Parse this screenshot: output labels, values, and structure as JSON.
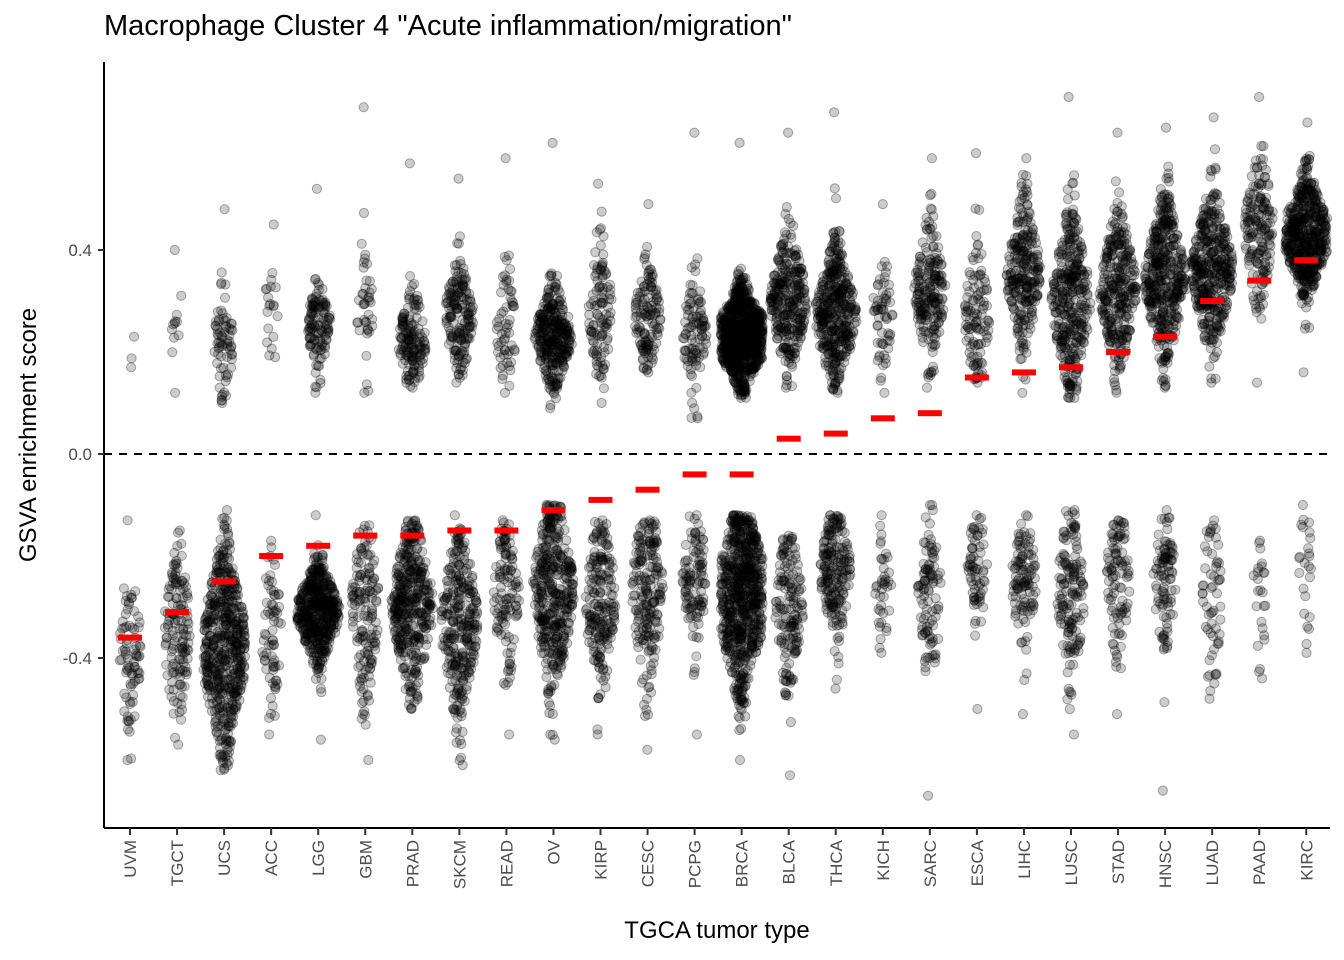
{
  "chart_data": {
    "type": "scatter",
    "subtype": "beeswarm",
    "title": "Macrophage Cluster 4 \"Acute inflammation/migration\"",
    "xlabel": "TGCA tumor type",
    "ylabel": "GSVA enrichment score",
    "ylim": [
      -0.73,
      0.77
    ],
    "yticks": [
      0.4,
      0.0,
      -0.4
    ],
    "ytick_labels": [
      "0.4",
      "0.0",
      "-0.4"
    ],
    "reference_line": {
      "y": 0.0,
      "style": "dashed",
      "color": "#000000"
    },
    "point_color": "#000000",
    "point_alpha": 0.2,
    "median_marker_color": "#ff0000",
    "grid": false,
    "legend": "none",
    "categories": [
      "UVM",
      "TGCT",
      "UCS",
      "ACC",
      "LGG",
      "GBM",
      "PRAD",
      "SKCM",
      "READ",
      "OV",
      "KIRP",
      "CESC",
      "PCPG",
      "BRCA",
      "BLCA",
      "THCA",
      "KICH",
      "SARC",
      "ESCA",
      "LIHC",
      "LUSC",
      "STAD",
      "HNSC",
      "LUAD",
      "PAAD",
      "KIRC"
    ],
    "series": [
      {
        "group": "UVM",
        "mean": -0.36,
        "n_pos": 3,
        "pos_center": 0.2,
        "pos_sd": 0.04,
        "pos_min": 0.17,
        "pos_max": 0.23,
        "n_neg": 80,
        "neg_center": -0.38,
        "neg_sd": 0.09,
        "neg_min": -0.6,
        "neg_max": -0.13
      },
      {
        "group": "TGCT",
        "mean": -0.31,
        "n_pos": 12,
        "pos_center": 0.25,
        "pos_sd": 0.07,
        "pos_min": 0.12,
        "pos_max": 0.4,
        "n_neg": 140,
        "neg_center": -0.35,
        "neg_sd": 0.09,
        "neg_min": -0.57,
        "neg_max": -0.15
      },
      {
        "group": "UCS",
        "mean": -0.25,
        "n_pos": 70,
        "pos_center": 0.22,
        "pos_sd": 0.05,
        "pos_min": 0.1,
        "pos_max": 0.48,
        "n_neg": 550,
        "neg_center": -0.38,
        "neg_sd": 0.1,
        "neg_min": -0.62,
        "neg_max": -0.11
      },
      {
        "group": "ACC",
        "mean": -0.2,
        "n_pos": 20,
        "pos_center": 0.28,
        "pos_sd": 0.06,
        "pos_min": 0.19,
        "pos_max": 0.45,
        "n_neg": 70,
        "neg_center": -0.35,
        "neg_sd": 0.08,
        "neg_min": -0.55,
        "neg_max": -0.17
      },
      {
        "group": "LGG",
        "mean": -0.18,
        "n_pos": 120,
        "pos_center": 0.25,
        "pos_sd": 0.04,
        "pos_min": 0.12,
        "pos_max": 0.52,
        "n_neg": 480,
        "neg_center": -0.31,
        "neg_sd": 0.05,
        "neg_min": -0.56,
        "neg_max": -0.12
      },
      {
        "group": "GBM",
        "mean": -0.16,
        "n_pos": 40,
        "pos_center": 0.28,
        "pos_sd": 0.07,
        "pos_min": 0.12,
        "pos_max": 0.68,
        "n_neg": 150,
        "neg_center": -0.3,
        "neg_sd": 0.09,
        "neg_min": -0.6,
        "neg_max": -0.14
      },
      {
        "group": "PRAD",
        "mean": -0.16,
        "n_pos": 150,
        "pos_center": 0.22,
        "pos_sd": 0.05,
        "pos_min": 0.13,
        "pos_max": 0.57,
        "n_neg": 400,
        "neg_center": -0.3,
        "neg_sd": 0.09,
        "neg_min": -0.5,
        "neg_max": -0.13
      },
      {
        "group": "SKCM",
        "mean": -0.15,
        "n_pos": 170,
        "pos_center": 0.27,
        "pos_sd": 0.06,
        "pos_min": 0.14,
        "pos_max": 0.54,
        "n_neg": 300,
        "neg_center": -0.33,
        "neg_sd": 0.1,
        "neg_min": -0.61,
        "neg_max": -0.12
      },
      {
        "group": "READ",
        "mean": -0.15,
        "n_pos": 60,
        "pos_center": 0.24,
        "pos_sd": 0.06,
        "pos_min": 0.12,
        "pos_max": 0.58,
        "n_neg": 120,
        "neg_center": -0.28,
        "neg_sd": 0.08,
        "neg_min": -0.55,
        "neg_max": -0.13
      },
      {
        "group": "OV",
        "mean": -0.11,
        "n_pos": 320,
        "pos_center": 0.23,
        "pos_sd": 0.05,
        "pos_min": 0.09,
        "pos_max": 0.61,
        "n_neg": 400,
        "neg_center": -0.27,
        "neg_sd": 0.1,
        "neg_min": -0.56,
        "neg_max": -0.1
      },
      {
        "group": "KIRP",
        "mean": -0.09,
        "n_pos": 110,
        "pos_center": 0.28,
        "pos_sd": 0.07,
        "pos_min": 0.1,
        "pos_max": 0.53,
        "n_neg": 200,
        "neg_center": -0.29,
        "neg_sd": 0.09,
        "neg_min": -0.55,
        "neg_max": -0.13
      },
      {
        "group": "CESC",
        "mean": -0.07,
        "n_pos": 130,
        "pos_center": 0.27,
        "pos_sd": 0.05,
        "pos_min": 0.16,
        "pos_max": 0.49,
        "n_neg": 200,
        "neg_center": -0.27,
        "neg_sd": 0.1,
        "neg_min": -0.58,
        "neg_max": -0.13
      },
      {
        "group": "PCPG",
        "mean": -0.04,
        "n_pos": 100,
        "pos_center": 0.23,
        "pos_sd": 0.06,
        "pos_min": 0.07,
        "pos_max": 0.63,
        "n_neg": 110,
        "neg_center": -0.24,
        "neg_sd": 0.07,
        "neg_min": -0.55,
        "neg_max": -0.12
      },
      {
        "group": "BRCA",
        "mean": -0.04,
        "n_pos": 800,
        "pos_center": 0.23,
        "pos_sd": 0.05,
        "pos_min": 0.11,
        "pos_max": 0.61,
        "n_neg": 700,
        "neg_center": -0.28,
        "neg_sd": 0.1,
        "neg_min": -0.6,
        "neg_max": -0.12
      },
      {
        "group": "BLCA",
        "mean": 0.03,
        "n_pos": 300,
        "pos_center": 0.3,
        "pos_sd": 0.07,
        "pos_min": 0.13,
        "pos_max": 0.63,
        "n_neg": 160,
        "neg_center": -0.3,
        "neg_sd": 0.08,
        "neg_min": -0.63,
        "neg_max": -0.16
      },
      {
        "group": "THCA",
        "mean": 0.04,
        "n_pos": 400,
        "pos_center": 0.27,
        "pos_sd": 0.07,
        "pos_min": 0.12,
        "pos_max": 0.67,
        "n_neg": 200,
        "neg_center": -0.23,
        "neg_sd": 0.07,
        "neg_min": -0.46,
        "neg_max": -0.12
      },
      {
        "group": "KICH",
        "mean": 0.07,
        "n_pos": 60,
        "pos_center": 0.28,
        "pos_sd": 0.06,
        "pos_min": 0.12,
        "pos_max": 0.49,
        "n_neg": 40,
        "neg_center": -0.27,
        "neg_sd": 0.06,
        "neg_min": -0.39,
        "neg_max": -0.12
      },
      {
        "group": "SARC",
        "mean": 0.08,
        "n_pos": 200,
        "pos_center": 0.32,
        "pos_sd": 0.07,
        "pos_min": 0.13,
        "pos_max": 0.58,
        "n_neg": 100,
        "neg_center": -0.28,
        "neg_sd": 0.08,
        "neg_min": -0.67,
        "neg_max": -0.1
      },
      {
        "group": "ESCA",
        "mean": 0.15,
        "n_pos": 110,
        "pos_center": 0.27,
        "pos_sd": 0.07,
        "pos_min": 0.14,
        "pos_max": 0.59,
        "n_neg": 70,
        "neg_center": -0.23,
        "neg_sd": 0.06,
        "neg_min": -0.5,
        "neg_max": -0.12
      },
      {
        "group": "LIHC",
        "mean": 0.16,
        "n_pos": 260,
        "pos_center": 0.35,
        "pos_sd": 0.07,
        "pos_min": 0.12,
        "pos_max": 0.58,
        "n_neg": 110,
        "neg_center": -0.25,
        "neg_sd": 0.07,
        "neg_min": -0.51,
        "neg_max": -0.12
      },
      {
        "group": "LUSC",
        "mean": 0.17,
        "n_pos": 350,
        "pos_center": 0.3,
        "pos_sd": 0.09,
        "pos_min": 0.11,
        "pos_max": 0.7,
        "n_neg": 150,
        "neg_center": -0.27,
        "neg_sd": 0.09,
        "neg_min": -0.55,
        "neg_max": -0.11
      },
      {
        "group": "STAD",
        "mean": 0.2,
        "n_pos": 300,
        "pos_center": 0.32,
        "pos_sd": 0.08,
        "pos_min": 0.12,
        "pos_max": 0.63,
        "n_neg": 100,
        "neg_center": -0.25,
        "neg_sd": 0.08,
        "neg_min": -0.51,
        "neg_max": -0.13
      },
      {
        "group": "HNSC",
        "mean": 0.23,
        "n_pos": 420,
        "pos_center": 0.34,
        "pos_sd": 0.08,
        "pos_min": 0.13,
        "pos_max": 0.64,
        "n_neg": 100,
        "neg_center": -0.25,
        "neg_sd": 0.07,
        "neg_min": -0.66,
        "neg_max": -0.11
      },
      {
        "group": "LUAD",
        "mean": 0.3,
        "n_pos": 400,
        "pos_center": 0.36,
        "pos_sd": 0.08,
        "pos_min": 0.14,
        "pos_max": 0.66,
        "n_neg": 60,
        "neg_center": -0.27,
        "neg_sd": 0.09,
        "neg_min": -0.48,
        "neg_max": -0.13
      },
      {
        "group": "PAAD",
        "mean": 0.34,
        "n_pos": 170,
        "pos_center": 0.44,
        "pos_sd": 0.08,
        "pos_min": 0.14,
        "pos_max": 0.7,
        "n_neg": 25,
        "neg_center": -0.29,
        "neg_sd": 0.07,
        "neg_min": -0.44,
        "neg_max": -0.17
      },
      {
        "group": "KIRC",
        "mean": 0.38,
        "n_pos": 520,
        "pos_center": 0.43,
        "pos_sd": 0.06,
        "pos_min": 0.16,
        "pos_max": 0.65,
        "n_neg": 25,
        "neg_center": -0.23,
        "neg_sd": 0.07,
        "neg_min": -0.39,
        "neg_max": -0.1
      }
    ]
  }
}
